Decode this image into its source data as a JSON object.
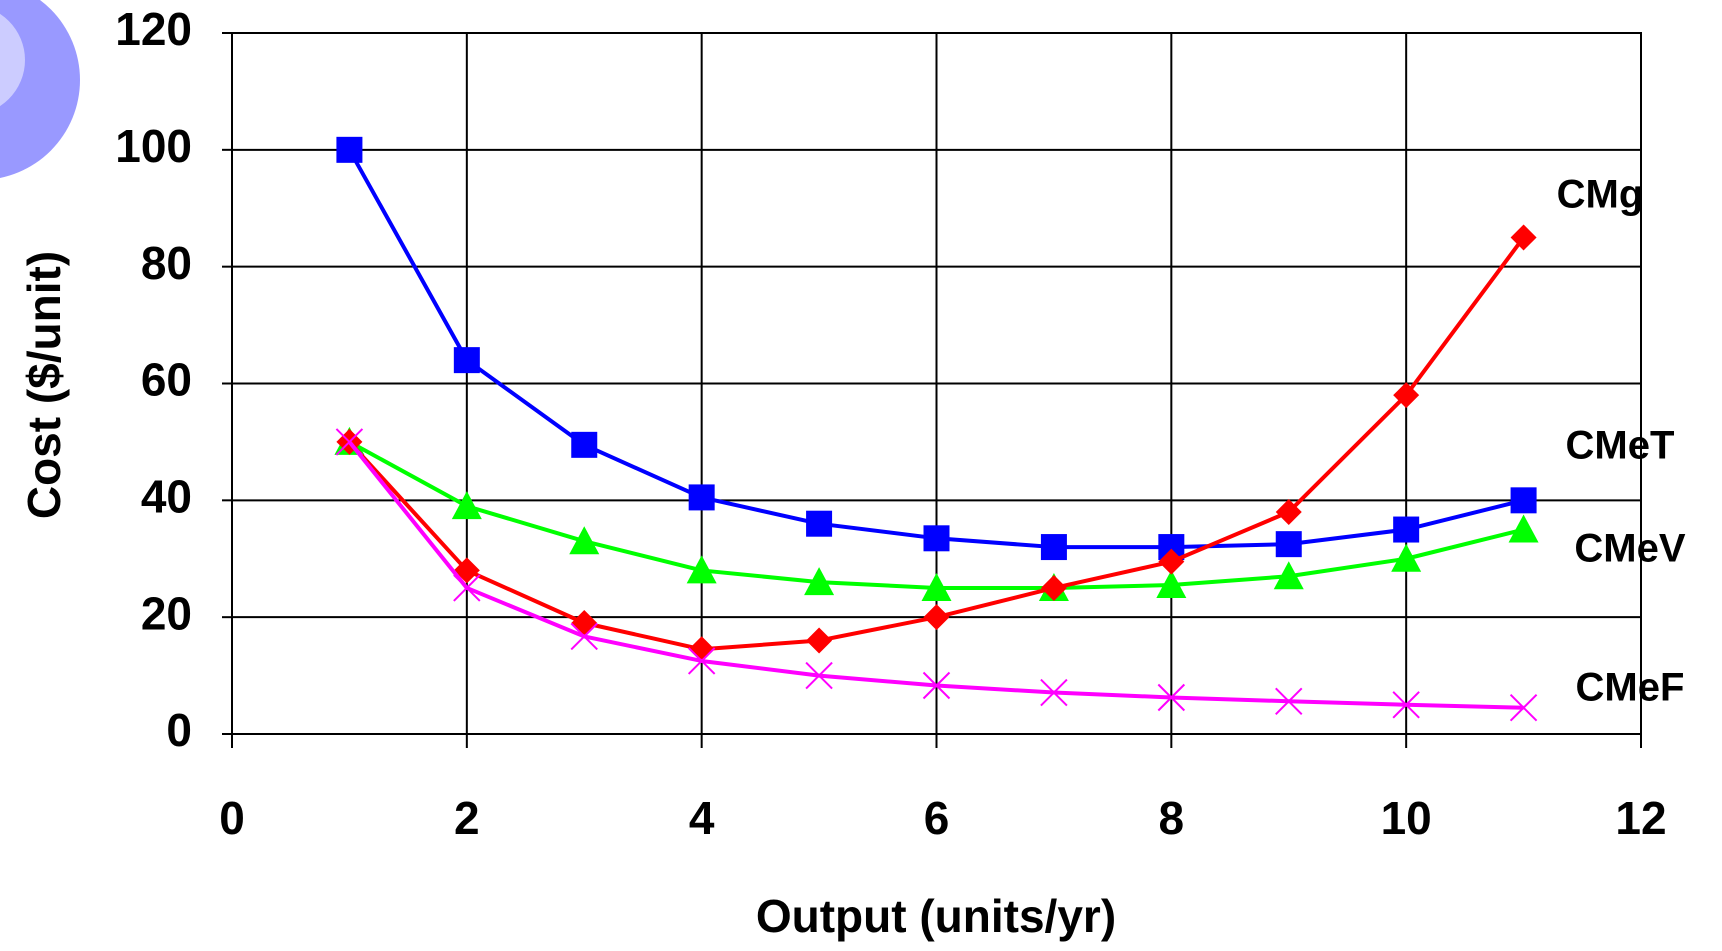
{
  "chart_data": {
    "type": "line",
    "x_label": "Output (units/yr)",
    "y_label": "Cost ($/unit)",
    "x": [
      1,
      2,
      3,
      4,
      5,
      6,
      7,
      8,
      9,
      10,
      11
    ],
    "series": [
      {
        "name": "CMeT",
        "color": "#0000ff",
        "marker": "square",
        "values": [
          100,
          64,
          49.5,
          40.5,
          36,
          33.5,
          32,
          32,
          32.5,
          35,
          40
        ]
      },
      {
        "name": "CMeV",
        "color": "#00ff00",
        "marker": "triangle",
        "values": [
          50,
          39,
          33,
          28,
          26,
          25,
          25,
          25.5,
          27,
          30,
          35
        ]
      },
      {
        "name": "CMg",
        "color": "#ff0000",
        "marker": "diamond",
        "values": [
          50,
          28,
          19,
          14.5,
          16,
          20,
          25,
          29.5,
          38,
          58,
          85
        ]
      },
      {
        "name": "CMeF",
        "color": "#ff00ff",
        "marker": "x",
        "values": [
          50,
          25,
          16.7,
          12.5,
          10,
          8.3,
          7.1,
          6.25,
          5.6,
          5,
          4.5
        ]
      }
    ],
    "xlim": [
      0,
      12
    ],
    "xticks": [
      0,
      2,
      4,
      6,
      8,
      10,
      12
    ],
    "ylim": [
      0,
      120
    ],
    "yticks": [
      0,
      20,
      40,
      60,
      80,
      100,
      120
    ],
    "grid": true
  }
}
